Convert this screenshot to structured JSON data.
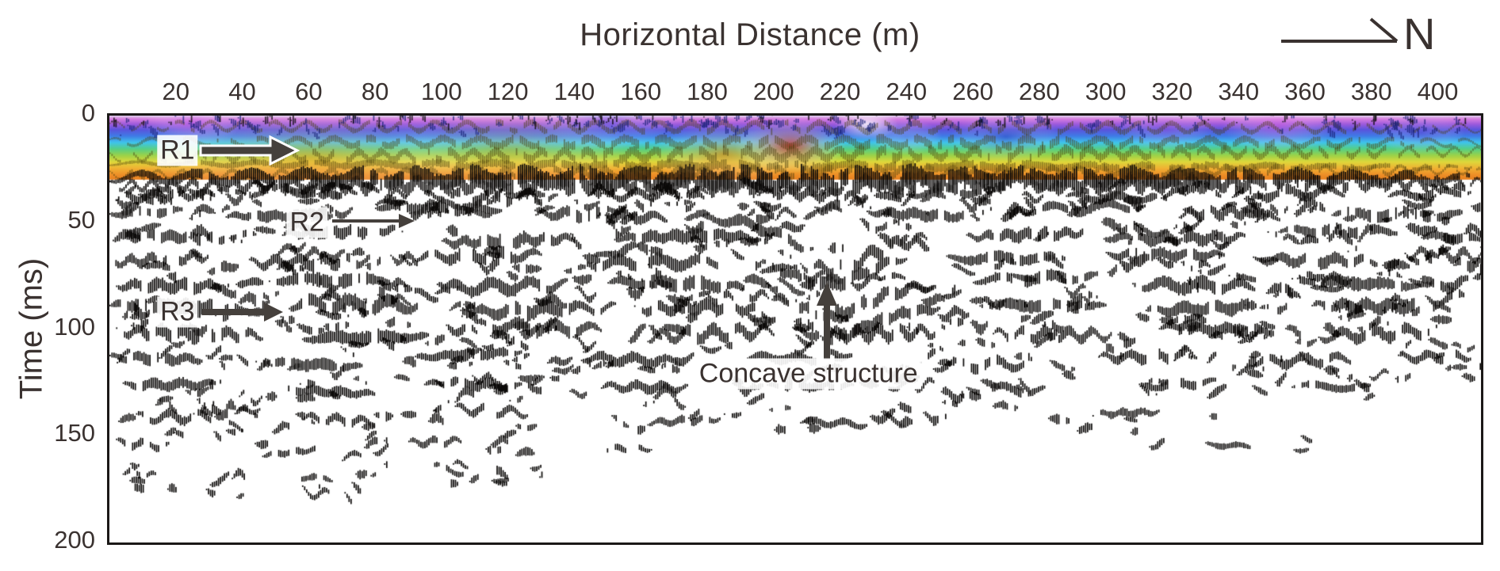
{
  "figure": {
    "background": "#ffffff",
    "text_color": "#3a3230",
    "frame_color": "#1b1817",
    "arrow_color": "#45403c",
    "seismic_color": "#0c0a09",
    "north_label": "N"
  },
  "chart_data": {
    "type": "seismic-wiggle-section",
    "title": "Horizontal Distance (m)",
    "xlabel": "Horizontal Distance (m)",
    "ylabel": "Time (ms)",
    "x_ticks": [
      20,
      40,
      60,
      80,
      100,
      120,
      140,
      160,
      180,
      200,
      220,
      240,
      260,
      280,
      300,
      320,
      340,
      360,
      380,
      400
    ],
    "x_range": [
      0,
      413
    ],
    "y_ticks": [
      0,
      50,
      100,
      150,
      200
    ],
    "y_range": [
      0,
      200
    ],
    "grid": false,
    "legend": null,
    "annotations": {
      "r1": {
        "label": "R1",
        "label_pos": {
          "x": 20.5,
          "t": 16.5
        },
        "arrow": {
          "from": {
            "x": 27,
            "t": 16.5
          },
          "to": {
            "x": 55,
            "t": 16.5
          },
          "style": "thick-outlined"
        }
      },
      "r2": {
        "label": "R2",
        "label_pos": {
          "x": 59.5,
          "t": 50
        },
        "arrow": {
          "from": {
            "x": 67,
            "t": 49.5
          },
          "to": {
            "x": 90,
            "t": 49.5
          },
          "style": "thin"
        }
      },
      "r3": {
        "label": "R3",
        "label_pos": {
          "x": 20.5,
          "t": 92
        },
        "arrow": {
          "from": {
            "x": 28,
            "t": 92
          },
          "to": {
            "x": 51,
            "t": 92
          },
          "style": "medium"
        }
      },
      "concave": {
        "label": "Concave structure",
        "label_pos": {
          "x": 210.5,
          "t": 121
        },
        "arrow": {
          "from": {
            "x": 216,
            "t": 113
          },
          "to": {
            "x": 216,
            "t": 78
          },
          "style": "medium-up"
        }
      },
      "north": {
        "label": "N"
      }
    },
    "colorband": {
      "t_bottom": 30,
      "stops": [
        [
          0.0,
          "#ddd2ec"
        ],
        [
          0.05,
          "#d97fe0"
        ],
        [
          0.13,
          "#9f5bdc"
        ],
        [
          0.22,
          "#5a54dc"
        ],
        [
          0.32,
          "#3f7ce6"
        ],
        [
          0.42,
          "#3fc4ec"
        ],
        [
          0.52,
          "#55cf86"
        ],
        [
          0.62,
          "#9ad249"
        ],
        [
          0.72,
          "#ddd83b"
        ],
        [
          0.82,
          "#f0b233"
        ],
        [
          0.92,
          "#ee9028"
        ],
        [
          1.0,
          "#e7801f"
        ]
      ],
      "blobs": [
        {
          "x": 25,
          "t": 4,
          "r": 60,
          "sy": 0.5,
          "color": "rgba(205,95,230,0.5)"
        },
        {
          "x": 150,
          "t": 3,
          "r": 90,
          "sy": 0.4,
          "color": "rgba(70,90,225,0.4)"
        },
        {
          "x": 60,
          "t": 20,
          "r": 210,
          "sy": 0.3,
          "color": "rgba(238,150,45,0.45)"
        },
        {
          "x": 120,
          "t": 16,
          "r": 160,
          "sy": 0.35,
          "color": "rgba(230,170,50,0.4)"
        },
        {
          "x": 185,
          "t": 18,
          "r": 90,
          "sy": 0.45,
          "color": "rgba(235,110,30,0.5)"
        },
        {
          "x": 205,
          "t": 14,
          "r": 70,
          "sy": 0.5,
          "color": "rgba(220,35,30,0.8)"
        },
        {
          "x": 228,
          "t": 4,
          "r": 40,
          "sy": 0.5,
          "color": "rgba(250,250,252,0.85)"
        },
        {
          "x": 240,
          "t": 10,
          "r": 45,
          "sy": 0.5,
          "color": "rgba(120,150,235,0.5)"
        },
        {
          "x": 270,
          "t": 10,
          "r": 70,
          "sy": 0.45,
          "color": "rgba(45,60,190,0.45)"
        },
        {
          "x": 318,
          "t": 6,
          "r": 60,
          "sy": 0.5,
          "color": "rgba(150,80,225,0.4)"
        },
        {
          "x": 352,
          "t": 5,
          "r": 70,
          "sy": 0.5,
          "color": "rgba(225,95,225,0.45)"
        },
        {
          "x": 395,
          "t": 8,
          "r": 55,
          "sy": 0.5,
          "color": "rgba(90,70,215,0.4)"
        }
      ]
    },
    "concave_sag": {
      "center": 216,
      "width": 17,
      "amount": 14
    },
    "band_reflectors": [
      [
        6,
        0,
        413,
        0.5
      ],
      [
        13,
        0,
        413,
        0.7
      ],
      [
        19,
        0,
        413,
        0.8
      ],
      [
        24,
        0,
        413,
        0.7
      ],
      [
        27.5,
        0,
        413,
        0.6
      ]
    ],
    "reflectors": [
      [
        29.5,
        0,
        413,
        1.25
      ],
      [
        31.5,
        0,
        413,
        1.0
      ],
      [
        37,
        2,
        28,
        0.55
      ],
      [
        36,
        40,
        75,
        0.5
      ],
      [
        38,
        95,
        135,
        0.6
      ],
      [
        36,
        148,
        180,
        0.5
      ],
      [
        37,
        195,
        228,
        0.55
      ],
      [
        36,
        240,
        268,
        0.5
      ],
      [
        38,
        288,
        320,
        0.55
      ],
      [
        36,
        338,
        372,
        0.6
      ],
      [
        37,
        385,
        410,
        0.5
      ],
      [
        46,
        0,
        22,
        0.6
      ],
      [
        48,
        35,
        68,
        0.65
      ],
      [
        44,
        80,
        118,
        0.7
      ],
      [
        47,
        128,
        168,
        0.75
      ],
      [
        48,
        178,
        212,
        0.7,
        1
      ],
      [
        46,
        228,
        262,
        0.65
      ],
      [
        44,
        275,
        312,
        0.6
      ],
      [
        46,
        322,
        355,
        0.7
      ],
      [
        47,
        368,
        408,
        0.75
      ],
      [
        57,
        3,
        40,
        0.7
      ],
      [
        55,
        52,
        88,
        0.75
      ],
      [
        58,
        100,
        140,
        0.8
      ],
      [
        56,
        152,
        196,
        0.8,
        1
      ],
      [
        57,
        208,
        246,
        0.75,
        1
      ],
      [
        55,
        258,
        295,
        0.7
      ],
      [
        57,
        305,
        342,
        0.75
      ],
      [
        54,
        352,
        388,
        0.7
      ],
      [
        57,
        395,
        413,
        0.6
      ],
      [
        67,
        0,
        30,
        0.65
      ],
      [
        69,
        42,
        80,
        0.7
      ],
      [
        65,
        92,
        130,
        0.75
      ],
      [
        68,
        142,
        186,
        0.8,
        1
      ],
      [
        66,
        196,
        240,
        0.8,
        1
      ],
      [
        67,
        252,
        288,
        0.7
      ],
      [
        65,
        300,
        336,
        0.7
      ],
      [
        68,
        346,
        382,
        0.75
      ],
      [
        66,
        390,
        413,
        0.6
      ],
      [
        79,
        2,
        36,
        0.8
      ],
      [
        77,
        48,
        86,
        0.85
      ],
      [
        80,
        98,
        138,
        0.8
      ],
      [
        78,
        150,
        192,
        0.85,
        1
      ],
      [
        79,
        200,
        248,
        0.85,
        1
      ],
      [
        77,
        260,
        298,
        0.75
      ],
      [
        80,
        308,
        345,
        0.8
      ],
      [
        78,
        356,
        395,
        0.8
      ],
      [
        90,
        0,
        42,
        1.0
      ],
      [
        88,
        54,
        94,
        0.95
      ],
      [
        92,
        106,
        146,
        0.9
      ],
      [
        89,
        158,
        198,
        0.85,
        1
      ],
      [
        91,
        206,
        250,
        0.85,
        1
      ],
      [
        88,
        262,
        300,
        0.8
      ],
      [
        91,
        312,
        350,
        0.85
      ],
      [
        89,
        362,
        404,
        0.85
      ],
      [
        102,
        2,
        46,
        0.9
      ],
      [
        104,
        58,
        96,
        0.85
      ],
      [
        100,
        110,
        148,
        0.8
      ],
      [
        103,
        162,
        200,
        0.75
      ],
      [
        101,
        214,
        252,
        0.75
      ],
      [
        103,
        266,
        302,
        0.7
      ],
      [
        100,
        316,
        352,
        0.75
      ],
      [
        102,
        364,
        400,
        0.75
      ],
      [
        114,
        0,
        28,
        0.7
      ],
      [
        116,
        44,
        76,
        0.7
      ],
      [
        112,
        92,
        124,
        0.7
      ],
      [
        115,
        142,
        172,
        0.65
      ],
      [
        113,
        192,
        220,
        0.6
      ],
      [
        116,
        248,
        278,
        0.6
      ],
      [
        113,
        298,
        326,
        0.65
      ],
      [
        115,
        344,
        374,
        0.65
      ],
      [
        114,
        388,
        410,
        0.55
      ],
      [
        127,
        4,
        32,
        0.65
      ],
      [
        129,
        52,
        80,
        0.6
      ],
      [
        125,
        98,
        124,
        0.6
      ],
      [
        128,
        148,
        174,
        0.55
      ],
      [
        126,
        198,
        224,
        0.55
      ],
      [
        128,
        258,
        282,
        0.5
      ],
      [
        125,
        310,
        334,
        0.55
      ],
      [
        127,
        356,
        380,
        0.5
      ],
      [
        141,
        8,
        32,
        0.55
      ],
      [
        143,
        58,
        80,
        0.5
      ],
      [
        139,
        104,
        126,
        0.5
      ],
      [
        142,
        162,
        184,
        0.45
      ],
      [
        144,
        208,
        228,
        0.45
      ],
      [
        140,
        296,
        316,
        0.45
      ],
      [
        155,
        2,
        18,
        0.45
      ],
      [
        157,
        46,
        64,
        0.4
      ],
      [
        153,
        90,
        106,
        0.4
      ],
      [
        156,
        148,
        163,
        0.35
      ],
      [
        154,
        330,
        345,
        0.35
      ],
      [
        168,
        4,
        14,
        0.35
      ],
      [
        170,
        56,
        67,
        0.35
      ],
      [
        166,
        96,
        108,
        0.3
      ],
      [
        177,
        58,
        68,
        0.3
      ]
    ],
    "scatter": [
      {
        "t": [
          33,
          48
        ],
        "x": [
          0,
          413
        ],
        "n": 130,
        "l": [
          3,
          9
        ],
        "a": 0.45
      },
      {
        "t": [
          50,
          108
        ],
        "x": [
          0,
          413
        ],
        "n": 250,
        "l": [
          3,
          10
        ],
        "a": 0.5
      },
      {
        "t": [
          108,
          148
        ],
        "x": [
          0,
          300
        ],
        "n": 120,
        "l": [
          3,
          8
        ],
        "a": 0.45
      },
      {
        "t": [
          108,
          140
        ],
        "x": [
          300,
          413
        ],
        "n": 30,
        "l": [
          2,
          6
        ],
        "a": 0.4
      },
      {
        "t": [
          148,
          178
        ],
        "x": [
          0,
          130
        ],
        "n": 34,
        "l": [
          2,
          6
        ],
        "a": 0.38
      },
      {
        "t": [
          140,
          160
        ],
        "x": [
          300,
          360
        ],
        "n": 6,
        "l": [
          2,
          5
        ],
        "a": 0.35
      }
    ],
    "band_scatter": [
      {
        "t": [
          0,
          8
        ],
        "x": [
          0,
          413
        ],
        "n": 150,
        "l": [
          1,
          3
        ],
        "a": 0.5,
        "color": "rgba(25,35,120,0.75)"
      },
      {
        "t": [
          0,
          3
        ],
        "x": [
          0,
          413
        ],
        "n": 90,
        "l": [
          0.5,
          1.5
        ],
        "a": 0.6,
        "color": "rgba(10,10,10,0.8)"
      }
    ]
  }
}
